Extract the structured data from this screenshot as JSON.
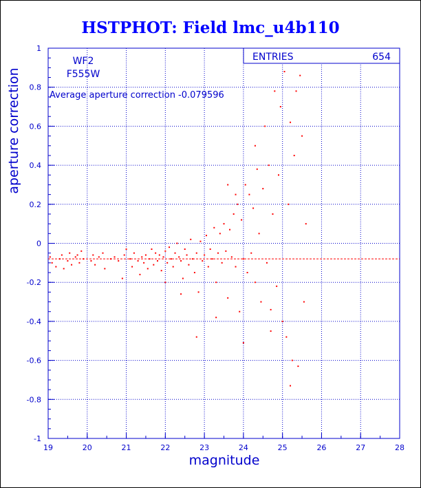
{
  "chart_data": {
    "type": "scatter",
    "title": "HSTPHOT: Field lmc_u4b110",
    "xlabel": "magnitude",
    "ylabel": "aperture correction",
    "xlim": [
      19,
      28
    ],
    "ylim": [
      -1,
      1
    ],
    "x_ticks": [
      "19",
      "20",
      "21",
      "22",
      "23",
      "24",
      "25",
      "26",
      "27",
      "28"
    ],
    "y_ticks": [
      "-1",
      "-0.8",
      "-0.6",
      "-0.4",
      "-0.2",
      "0",
      "0.2",
      "0.4",
      "0.6",
      "0.8",
      "1"
    ],
    "grid": true,
    "labels": {
      "chip": "WF2",
      "filter": "F555W",
      "average_text": "Average aperture correction -0.079596"
    },
    "stats_box": {
      "label": "ENTRIES",
      "value": "654"
    },
    "reference_line": {
      "y": -0.0796,
      "style": "dashed"
    },
    "points": [
      [
        19.05,
        -0.07
      ],
      [
        19.1,
        -0.1
      ],
      [
        19.2,
        -0.12
      ],
      [
        19.3,
        -0.08
      ],
      [
        19.35,
        -0.06
      ],
      [
        19.4,
        -0.13
      ],
      [
        19.5,
        -0.09
      ],
      [
        19.55,
        -0.05
      ],
      [
        19.6,
        -0.11
      ],
      [
        19.7,
        -0.07
      ],
      [
        19.75,
        -0.06
      ],
      [
        19.8,
        -0.1
      ],
      [
        19.85,
        -0.04
      ],
      [
        19.9,
        -0.08
      ],
      [
        20.1,
        -0.09
      ],
      [
        20.15,
        -0.06
      ],
      [
        20.2,
        -0.11
      ],
      [
        20.3,
        -0.07
      ],
      [
        20.4,
        -0.05
      ],
      [
        20.45,
        -0.13
      ],
      [
        20.6,
        -0.08
      ],
      [
        20.7,
        -0.07
      ],
      [
        20.8,
        -0.09
      ],
      [
        20.9,
        -0.18
      ],
      [
        20.95,
        -0.06
      ],
      [
        21.0,
        -0.03
      ],
      [
        21.1,
        -0.08
      ],
      [
        21.15,
        -0.12
      ],
      [
        21.2,
        -0.05
      ],
      [
        21.3,
        -0.09
      ],
      [
        21.35,
        -0.16
      ],
      [
        21.4,
        -0.07
      ],
      [
        21.45,
        -0.1
      ],
      [
        21.5,
        -0.06
      ],
      [
        21.55,
        -0.13
      ],
      [
        21.6,
        -0.08
      ],
      [
        21.65,
        -0.03
      ],
      [
        21.7,
        -0.11
      ],
      [
        21.75,
        -0.05
      ],
      [
        21.8,
        -0.09
      ],
      [
        21.85,
        -0.06
      ],
      [
        21.9,
        -0.14
      ],
      [
        21.95,
        -0.07
      ],
      [
        22.0,
        -0.04
      ],
      [
        22.05,
        -0.1
      ],
      [
        22.1,
        -0.02
      ],
      [
        22.15,
        -0.08
      ],
      [
        22.2,
        -0.12
      ],
      [
        22.25,
        -0.05
      ],
      [
        22.3,
        0.0
      ],
      [
        22.35,
        -0.07
      ],
      [
        22.4,
        -0.09
      ],
      [
        22.45,
        -0.18
      ],
      [
        22.5,
        -0.03
      ],
      [
        22.55,
        -0.06
      ],
      [
        22.6,
        -0.11
      ],
      [
        22.65,
        0.02
      ],
      [
        22.7,
        -0.08
      ],
      [
        22.75,
        -0.15
      ],
      [
        22.8,
        -0.05
      ],
      [
        22.85,
        -0.25
      ],
      [
        22.9,
        0.01
      ],
      [
        22.95,
        -0.09
      ],
      [
        23.0,
        -0.06
      ],
      [
        23.05,
        0.04
      ],
      [
        23.1,
        -0.12
      ],
      [
        23.15,
        -0.03
      ],
      [
        23.2,
        -0.08
      ],
      [
        23.25,
        0.08
      ],
      [
        23.3,
        -0.2
      ],
      [
        23.35,
        -0.05
      ],
      [
        23.4,
        0.05
      ],
      [
        23.45,
        -0.1
      ],
      [
        23.5,
        0.1
      ],
      [
        23.55,
        -0.04
      ],
      [
        23.6,
        -0.28
      ],
      [
        23.65,
        0.07
      ],
      [
        23.7,
        -0.07
      ],
      [
        23.75,
        0.15
      ],
      [
        23.8,
        -0.12
      ],
      [
        23.85,
        0.2
      ],
      [
        23.9,
        -0.35
      ],
      [
        23.95,
        0.12
      ],
      [
        24.0,
        -0.08
      ],
      [
        24.05,
        0.3
      ],
      [
        24.1,
        -0.15
      ],
      [
        24.15,
        0.25
      ],
      [
        24.2,
        -0.05
      ],
      [
        24.25,
        0.18
      ],
      [
        24.3,
        -0.2
      ],
      [
        24.35,
        0.38
      ],
      [
        24.4,
        0.05
      ],
      [
        24.45,
        -0.3
      ],
      [
        24.5,
        0.28
      ],
      [
        24.55,
        0.6
      ],
      [
        24.6,
        -0.1
      ],
      [
        24.65,
        0.4
      ],
      [
        24.7,
        -0.45
      ],
      [
        24.75,
        0.15
      ],
      [
        24.8,
        0.78
      ],
      [
        24.85,
        -0.22
      ],
      [
        24.9,
        0.35
      ],
      [
        24.95,
        0.7
      ],
      [
        25.0,
        -0.4
      ],
      [
        25.05,
        0.88
      ],
      [
        25.1,
        -0.48
      ],
      [
        25.15,
        0.2
      ],
      [
        25.2,
        0.62
      ],
      [
        25.25,
        -0.6
      ],
      [
        25.3,
        0.45
      ],
      [
        25.35,
        0.78
      ],
      [
        25.4,
        -0.63
      ],
      [
        25.45,
        0.86
      ],
      [
        25.5,
        0.55
      ],
      [
        25.55,
        -0.3
      ],
      [
        25.6,
        0.1
      ],
      [
        22.4,
        -0.26
      ],
      [
        22.8,
        -0.48
      ],
      [
        23.3,
        -0.38
      ],
      [
        24.0,
        -0.51
      ],
      [
        24.7,
        -0.34
      ],
      [
        25.2,
        -0.73
      ],
      [
        24.3,
        0.5
      ],
      [
        23.8,
        0.25
      ],
      [
        23.6,
        0.3
      ],
      [
        22.0,
        -0.2
      ]
    ],
    "colors": {
      "title": "#0000ff",
      "axes": "#0000cc",
      "points": "#ff0000",
      "reference_line": "#ff0000",
      "text": "#0000cc"
    }
  }
}
